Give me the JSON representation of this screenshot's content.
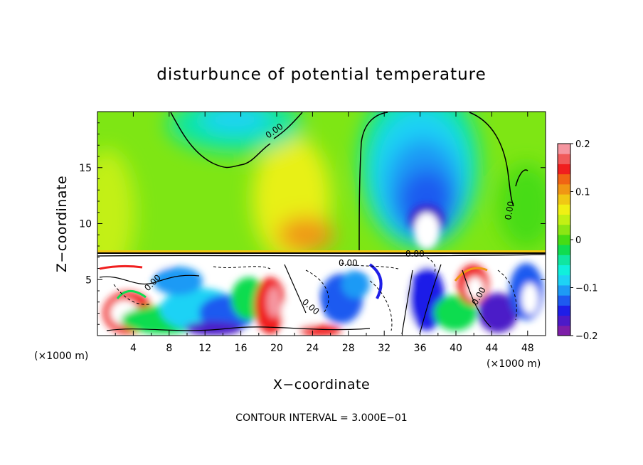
{
  "chart_data": {
    "type": "heatmap",
    "title": "disturbunce of potential temperature",
    "xlabel": "X−coordinate",
    "ylabel": "Z−coordinate",
    "x_unit": "(×1000 m)",
    "y_unit": "(×1000 m)",
    "xlim": [
      0,
      50
    ],
    "ylim": [
      0,
      20
    ],
    "x_ticks": [
      4,
      8,
      12,
      16,
      20,
      24,
      28,
      32,
      36,
      40,
      44,
      48
    ],
    "y_ticks": [
      5,
      10,
      15
    ],
    "contour_interval_text": "CONTOUR INTERVAL = 3.000E−01",
    "contour_labels": [
      "0.00"
    ],
    "colorbar": {
      "min": -0.2,
      "max": 0.2,
      "ticks": [
        {
          "value": 0.2,
          "label": "0.2"
        },
        {
          "value": 0.1,
          "label": "0.1"
        },
        {
          "value": 0,
          "label": "0"
        },
        {
          "value": -0.1,
          "label": "−0.1"
        },
        {
          "value": -0.2,
          "label": "−0.2"
        }
      ],
      "colors": [
        "#7d1ea8",
        "#4c1ac8",
        "#1e1ee8",
        "#1e5af0",
        "#1e9af5",
        "#1ed2f5",
        "#10f0dc",
        "#10e6a0",
        "#10dc50",
        "#46dc14",
        "#8ce614",
        "#c3f014",
        "#f0f014",
        "#f0c814",
        "#f09614",
        "#f06414",
        "#f01e1e",
        "#f05a5a",
        "#f596a0"
      ]
    },
    "legend": "right colorbar"
  }
}
